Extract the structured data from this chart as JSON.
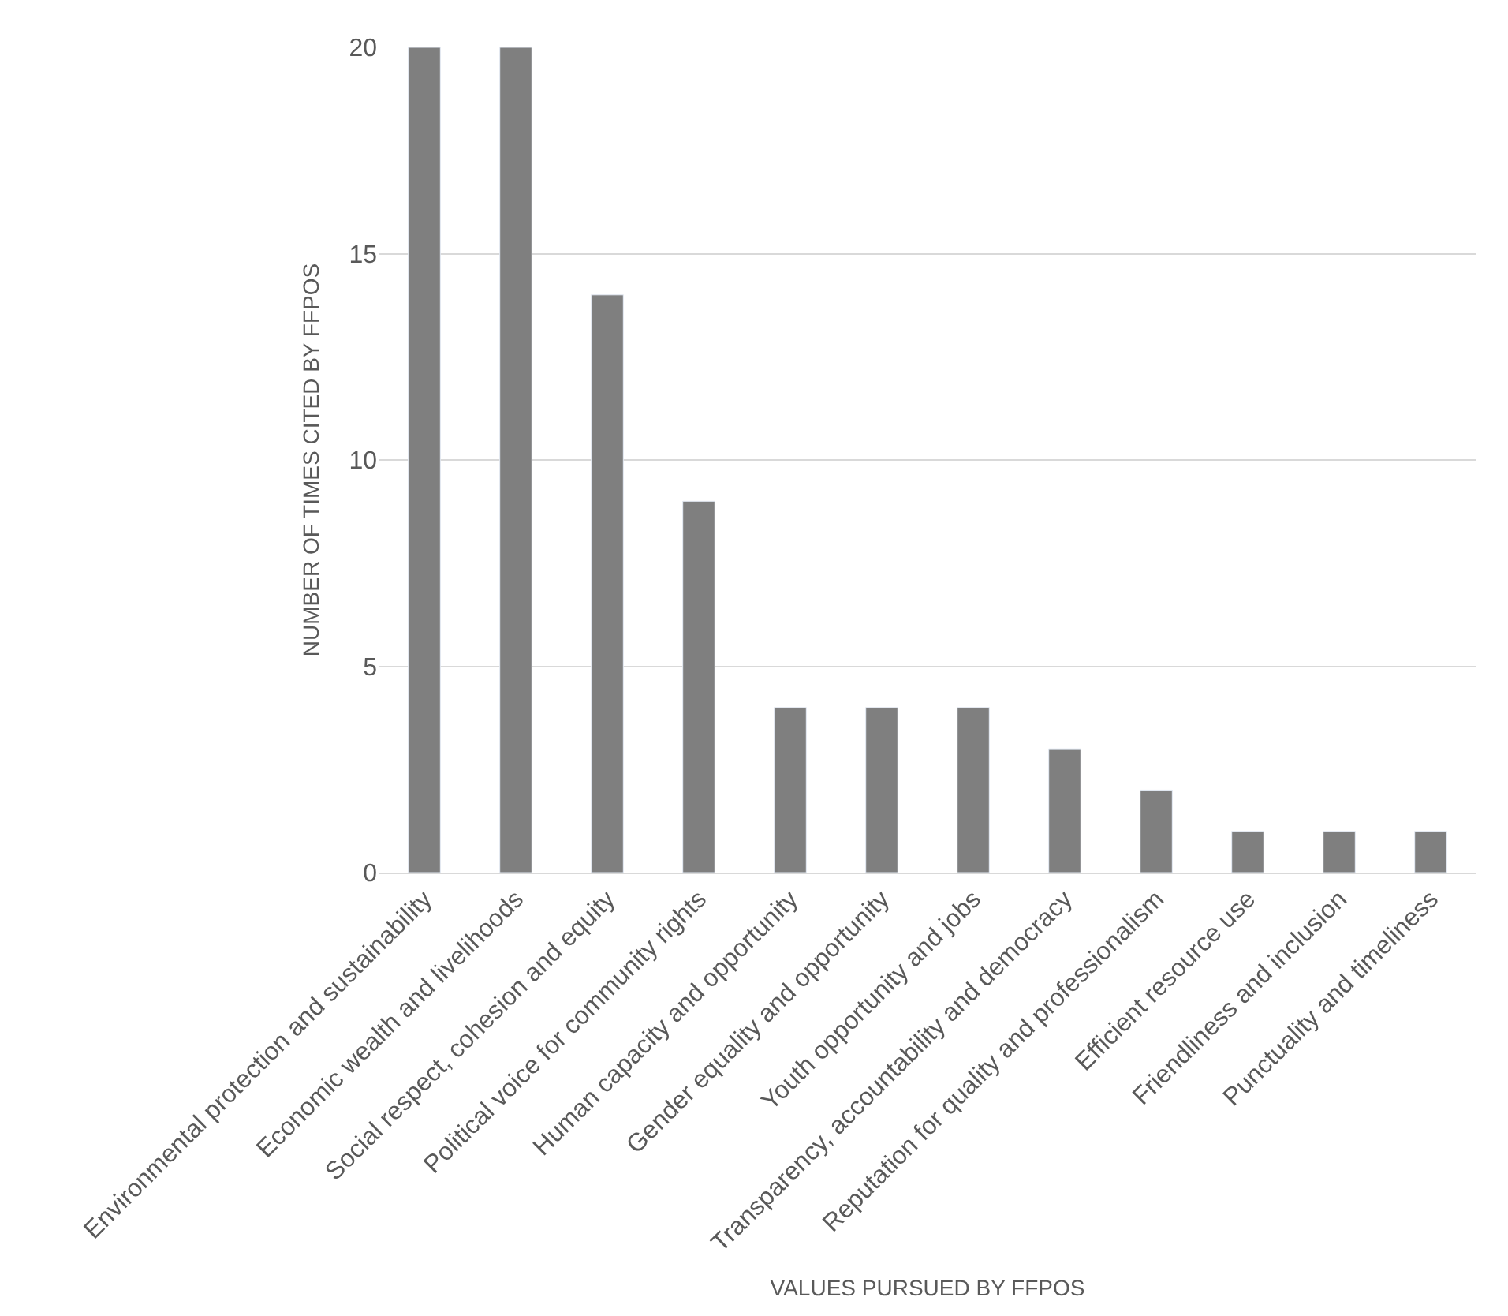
{
  "chart_data": {
    "type": "bar",
    "xlabel": "VALUES PURSUED BY FFPOS",
    "ylabel": "NUMBER OF TIMES CITED BY FFPOS",
    "categories": [
      "Environmental protection and sustainability",
      "Economic wealth and livelihoods",
      "Social respect, cohesion and equity",
      "Political voice for community rights",
      "Human capacity and opportunity",
      "Gender equality and opportunity",
      "Youth opportunity and jobs",
      "Transparency, accountability and democracy",
      "Reputation for quality and professionalism",
      "Efficient resource use",
      "Friendliness and inclusion",
      "Punctuality and timeliness"
    ],
    "values": [
      20,
      20,
      14,
      9,
      4,
      4,
      4,
      3,
      2,
      1,
      1,
      1
    ],
    "color": "#7f7f7f",
    "ylim": [
      0,
      20
    ],
    "yticks": [
      0,
      5,
      10,
      15,
      20
    ],
    "grid": "y"
  }
}
